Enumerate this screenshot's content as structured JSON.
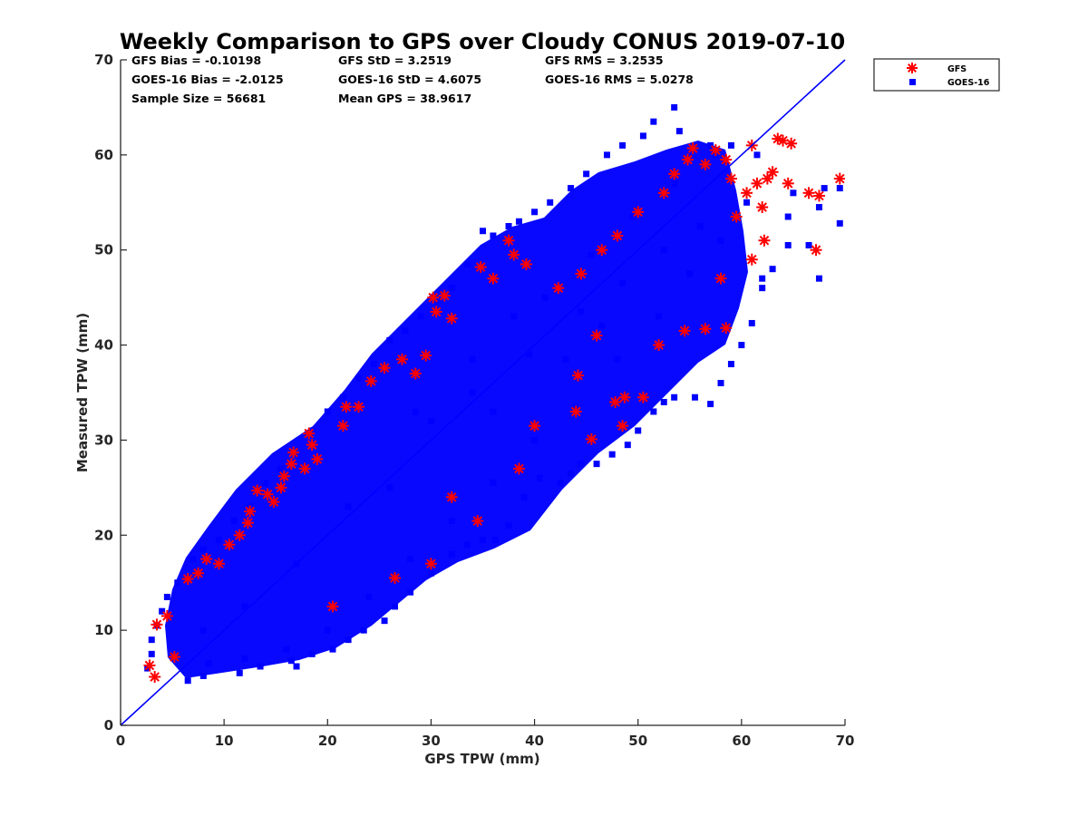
{
  "chart_data": {
    "type": "scatter",
    "title": "Weekly Comparison to GPS over Cloudy CONUS 2019-07-10",
    "xlabel": "GPS TPW (mm)",
    "ylabel": "Measured TPW (mm)",
    "xlim": [
      0,
      70
    ],
    "ylim": [
      0,
      70
    ],
    "xticks": [
      "0",
      "10",
      "20",
      "30",
      "40",
      "50",
      "60",
      "70"
    ],
    "yticks": [
      "0",
      "10",
      "20",
      "30",
      "40",
      "50",
      "60",
      "70"
    ],
    "grid": false,
    "legend": "outside-top-right",
    "reference_line": {
      "x": [
        0,
        70
      ],
      "y": [
        0,
        70
      ],
      "color": "#0000ff"
    },
    "stats": [
      [
        "GFS Bias = -0.10198",
        "GFS StD = 3.2519",
        "GFS RMS = 3.2535"
      ],
      [
        "GOES-16 Bias = -2.0125",
        "GOES-16 StD = 4.6075",
        "GOES-16 RMS = 5.0278"
      ],
      [
        "Sample Size = 56681",
        "Mean GPS = 38.9617",
        ""
      ]
    ],
    "series": [
      {
        "name": "GFS",
        "marker": "asterisk",
        "color": "#ff0000",
        "points": [
          [
            2.8,
            6.3
          ],
          [
            3.3,
            5.1
          ],
          [
            3.5,
            10.6
          ],
          [
            4.5,
            11.5
          ],
          [
            5.2,
            7.2
          ],
          [
            6.5,
            15.4
          ],
          [
            7.5,
            16.0
          ],
          [
            8.3,
            17.5
          ],
          [
            9.5,
            17.0
          ],
          [
            10.5,
            19.0
          ],
          [
            11.5,
            20.0
          ],
          [
            12.3,
            21.3
          ],
          [
            12.5,
            22.5
          ],
          [
            13.2,
            24.7
          ],
          [
            14.2,
            24.3
          ],
          [
            14.8,
            23.5
          ],
          [
            15.5,
            25.0
          ],
          [
            15.8,
            26.2
          ],
          [
            16.5,
            27.5
          ],
          [
            16.7,
            28.7
          ],
          [
            17.8,
            27.0
          ],
          [
            18.2,
            30.7
          ],
          [
            18.5,
            29.5
          ],
          [
            19.0,
            28.0
          ],
          [
            21.5,
            31.5
          ],
          [
            21.8,
            33.5
          ],
          [
            23.0,
            33.5
          ],
          [
            24.2,
            36.2
          ],
          [
            25.5,
            37.6
          ],
          [
            27.2,
            38.5
          ],
          [
            28.5,
            37.0
          ],
          [
            29.5,
            38.9
          ],
          [
            30.2,
            45.0
          ],
          [
            30.5,
            43.5
          ],
          [
            31.3,
            45.2
          ],
          [
            32.0,
            42.8
          ],
          [
            34.8,
            48.2
          ],
          [
            36.0,
            47.0
          ],
          [
            37.5,
            51.0
          ],
          [
            38.0,
            49.5
          ],
          [
            39.2,
            48.5
          ],
          [
            42.3,
            46.0
          ],
          [
            44.5,
            47.5
          ],
          [
            46.5,
            50.0
          ],
          [
            48.0,
            51.5
          ],
          [
            50.0,
            54.0
          ],
          [
            52.5,
            56.0
          ],
          [
            53.5,
            58.0
          ],
          [
            54.8,
            59.5
          ],
          [
            55.3,
            60.7
          ],
          [
            56.5,
            59.0
          ],
          [
            57.5,
            60.5
          ],
          [
            58.5,
            59.5
          ],
          [
            59.0,
            57.5
          ],
          [
            60.5,
            56.0
          ],
          [
            61.0,
            61.0
          ],
          [
            61.5,
            57.0
          ],
          [
            62.0,
            54.5
          ],
          [
            62.2,
            51.0
          ],
          [
            62.5,
            57.5
          ],
          [
            63.0,
            58.2
          ],
          [
            63.5,
            61.7
          ],
          [
            64.0,
            61.5
          ],
          [
            64.5,
            57.0
          ],
          [
            64.8,
            61.2
          ],
          [
            66.5,
            56.0
          ],
          [
            67.2,
            50.0
          ],
          [
            67.5,
            55.7
          ],
          [
            69.5,
            57.5
          ],
          [
            54.5,
            41.5
          ],
          [
            56.5,
            41.7
          ],
          [
            58.5,
            41.8
          ],
          [
            48.5,
            31.5
          ],
          [
            47.8,
            34.0
          ],
          [
            48.7,
            34.5
          ],
          [
            45.5,
            30.1
          ],
          [
            44.2,
            36.8
          ],
          [
            50.5,
            34.5
          ],
          [
            40.0,
            31.5
          ],
          [
            32.0,
            24.0
          ],
          [
            26.5,
            15.5
          ],
          [
            20.5,
            12.5
          ],
          [
            30.0,
            17.0
          ],
          [
            34.5,
            21.5
          ],
          [
            38.5,
            27.0
          ],
          [
            44.0,
            33.0
          ],
          [
            52.0,
            40.0
          ],
          [
            58.0,
            47.0
          ],
          [
            61.0,
            49.0
          ],
          [
            59.5,
            53.5
          ],
          [
            46.0,
            41.0
          ]
        ]
      },
      {
        "name": "GOES-16",
        "marker": "square",
        "color": "#0000ff",
        "points": [
          [
            2.6,
            6.0
          ],
          [
            3.0,
            7.5
          ],
          [
            6.5,
            4.7
          ],
          [
            8.0,
            5.2
          ],
          [
            11.5,
            5.5
          ],
          [
            13.5,
            6.2
          ],
          [
            16.5,
            6.8
          ],
          [
            17.0,
            6.2
          ],
          [
            18.5,
            7.5
          ],
          [
            20.5,
            8.0
          ],
          [
            22.0,
            9.0
          ],
          [
            23.5,
            10.0
          ],
          [
            25.5,
            11.0
          ],
          [
            26.5,
            12.5
          ],
          [
            28.0,
            14.0
          ],
          [
            30.0,
            16.0
          ],
          [
            32.0,
            18.0
          ],
          [
            33.5,
            19.0
          ],
          [
            35.0,
            19.5
          ],
          [
            36.2,
            19.5
          ],
          [
            37.5,
            21.0
          ],
          [
            39.0,
            24.0
          ],
          [
            40.5,
            26.0
          ],
          [
            42.5,
            25.5
          ],
          [
            43.5,
            26.5
          ],
          [
            44.5,
            27.5
          ],
          [
            46.0,
            27.5
          ],
          [
            47.5,
            28.5
          ],
          [
            49.0,
            29.5
          ],
          [
            50.0,
            31.0
          ],
          [
            51.5,
            33.0
          ],
          [
            52.5,
            34.0
          ],
          [
            53.5,
            34.5
          ],
          [
            55.5,
            34.5
          ],
          [
            57.0,
            33.8
          ],
          [
            58.0,
            36.0
          ],
          [
            59.0,
            38.0
          ],
          [
            60.0,
            40.0
          ],
          [
            61.0,
            42.3
          ],
          [
            62.0,
            46.0
          ],
          [
            63.0,
            48.0
          ],
          [
            64.5,
            50.5
          ],
          [
            66.5,
            50.5
          ],
          [
            67.5,
            47.0
          ],
          [
            69.5,
            52.8
          ],
          [
            69.5,
            56.5
          ],
          [
            67.5,
            54.5
          ],
          [
            65.0,
            56.0
          ],
          [
            64.5,
            53.5
          ],
          [
            61.5,
            60.0
          ],
          [
            59.0,
            61.0
          ],
          [
            57.0,
            61.0
          ],
          [
            54.0,
            62.5
          ],
          [
            53.5,
            65.0
          ],
          [
            51.5,
            63.5
          ],
          [
            50.5,
            62.0
          ],
          [
            48.5,
            61.0
          ],
          [
            47.0,
            60.0
          ],
          [
            45.0,
            58.0
          ],
          [
            43.5,
            56.5
          ],
          [
            41.5,
            55.0
          ],
          [
            40.0,
            54.0
          ],
          [
            38.5,
            53.0
          ],
          [
            37.5,
            52.5
          ],
          [
            36.0,
            51.5
          ],
          [
            35.0,
            52.0
          ],
          [
            33.5,
            48.5
          ],
          [
            32.0,
            46.0
          ],
          [
            30.5,
            44.5
          ],
          [
            29.0,
            43.0
          ],
          [
            27.5,
            41.5
          ],
          [
            26.0,
            40.5
          ],
          [
            24.5,
            38.0
          ],
          [
            23.0,
            36.5
          ],
          [
            21.5,
            34.5
          ],
          [
            20.0,
            33.0
          ],
          [
            18.5,
            31.0
          ],
          [
            17.0,
            28.5
          ],
          [
            15.5,
            27.0
          ],
          [
            14.0,
            25.5
          ],
          [
            12.5,
            23.0
          ],
          [
            11.0,
            21.5
          ],
          [
            9.5,
            19.5
          ],
          [
            8.0,
            18.5
          ],
          [
            7.0,
            17.5
          ],
          [
            5.5,
            15.0
          ],
          [
            4.5,
            13.5
          ],
          [
            4.0,
            12.0
          ],
          [
            3.5,
            10.5
          ],
          [
            3.0,
            9.0
          ],
          [
            41.0,
            45.0
          ],
          [
            45.5,
            49.5
          ],
          [
            49.5,
            53.5
          ],
          [
            53.5,
            57.0
          ],
          [
            57.5,
            60.0
          ],
          [
            60.5,
            55.0
          ],
          [
            58.0,
            51.0
          ],
          [
            55.0,
            47.5
          ],
          [
            52.0,
            43.0
          ],
          [
            48.0,
            38.5
          ],
          [
            44.0,
            33.5
          ],
          [
            40.0,
            30.0
          ],
          [
            36.0,
            25.5
          ],
          [
            32.0,
            21.5
          ],
          [
            28.0,
            17.5
          ],
          [
            24.0,
            13.5
          ],
          [
            20.0,
            10.0
          ],
          [
            16.0,
            8.0
          ],
          [
            12.0,
            7.0
          ],
          [
            8.5,
            6.5
          ],
          [
            28.5,
            33.0
          ],
          [
            34.0,
            38.5
          ],
          [
            38.0,
            43.0
          ],
          [
            30.0,
            32.0
          ],
          [
            34.0,
            35.0
          ],
          [
            39.5,
            39.0
          ],
          [
            44.5,
            43.5
          ],
          [
            48.5,
            46.5
          ],
          [
            52.5,
            50.0
          ],
          [
            56.0,
            52.5
          ],
          [
            22.0,
            23.0
          ],
          [
            17.0,
            17.0
          ],
          [
            12.0,
            12.5
          ],
          [
            8.0,
            10.0
          ],
          [
            62.0,
            47.0
          ],
          [
            68.0,
            56.5
          ],
          [
            43.0,
            38.5
          ],
          [
            46.5,
            42.0
          ],
          [
            36.0,
            33.0
          ],
          [
            26.0,
            25.0
          ]
        ]
      }
    ]
  }
}
